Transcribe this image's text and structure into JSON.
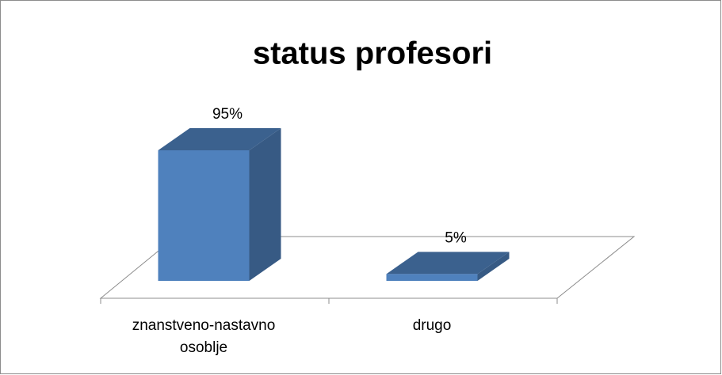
{
  "chart_data": {
    "type": "bar3d",
    "title": "status profesori",
    "categories": [
      "znanstveno-nastavno osoblje",
      "drugo"
    ],
    "values": [
      95,
      5
    ],
    "value_labels": [
      "95%",
      "5%"
    ],
    "color": "#4f81bd"
  }
}
